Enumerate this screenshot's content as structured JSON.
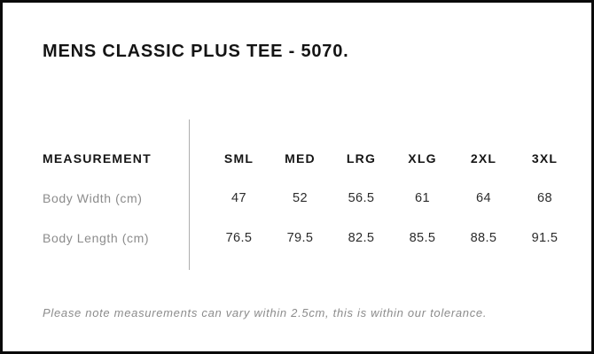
{
  "header": {
    "title": "MENS CLASSIC PLUS TEE - 5070."
  },
  "chart_data": {
    "type": "table",
    "title": "MENS CLASSIC PLUS TEE - 5070.",
    "columns": [
      "MEASUREMENT",
      "SML",
      "MED",
      "LRG",
      "XLG",
      "2XL",
      "3XL"
    ],
    "rows": [
      [
        "Body Width (cm)",
        47,
        52,
        56.5,
        61,
        64,
        68
      ],
      [
        "Body Length (cm)",
        76.5,
        79.5,
        82.5,
        85.5,
        88.5,
        91.5
      ]
    ],
    "units": "cm",
    "note": "Please note measurements can vary within 2.5cm, this is within our tolerance."
  },
  "footer": {
    "note": "Please note measurements can vary within 2.5cm, this is within our tolerance."
  },
  "colors": {
    "background": "#ffffff",
    "border": "#0a0a0a",
    "text_primary": "#141414",
    "text_values": "#2b2b2b",
    "text_muted": "#8c8c8c",
    "divider": "#aeaeae"
  }
}
